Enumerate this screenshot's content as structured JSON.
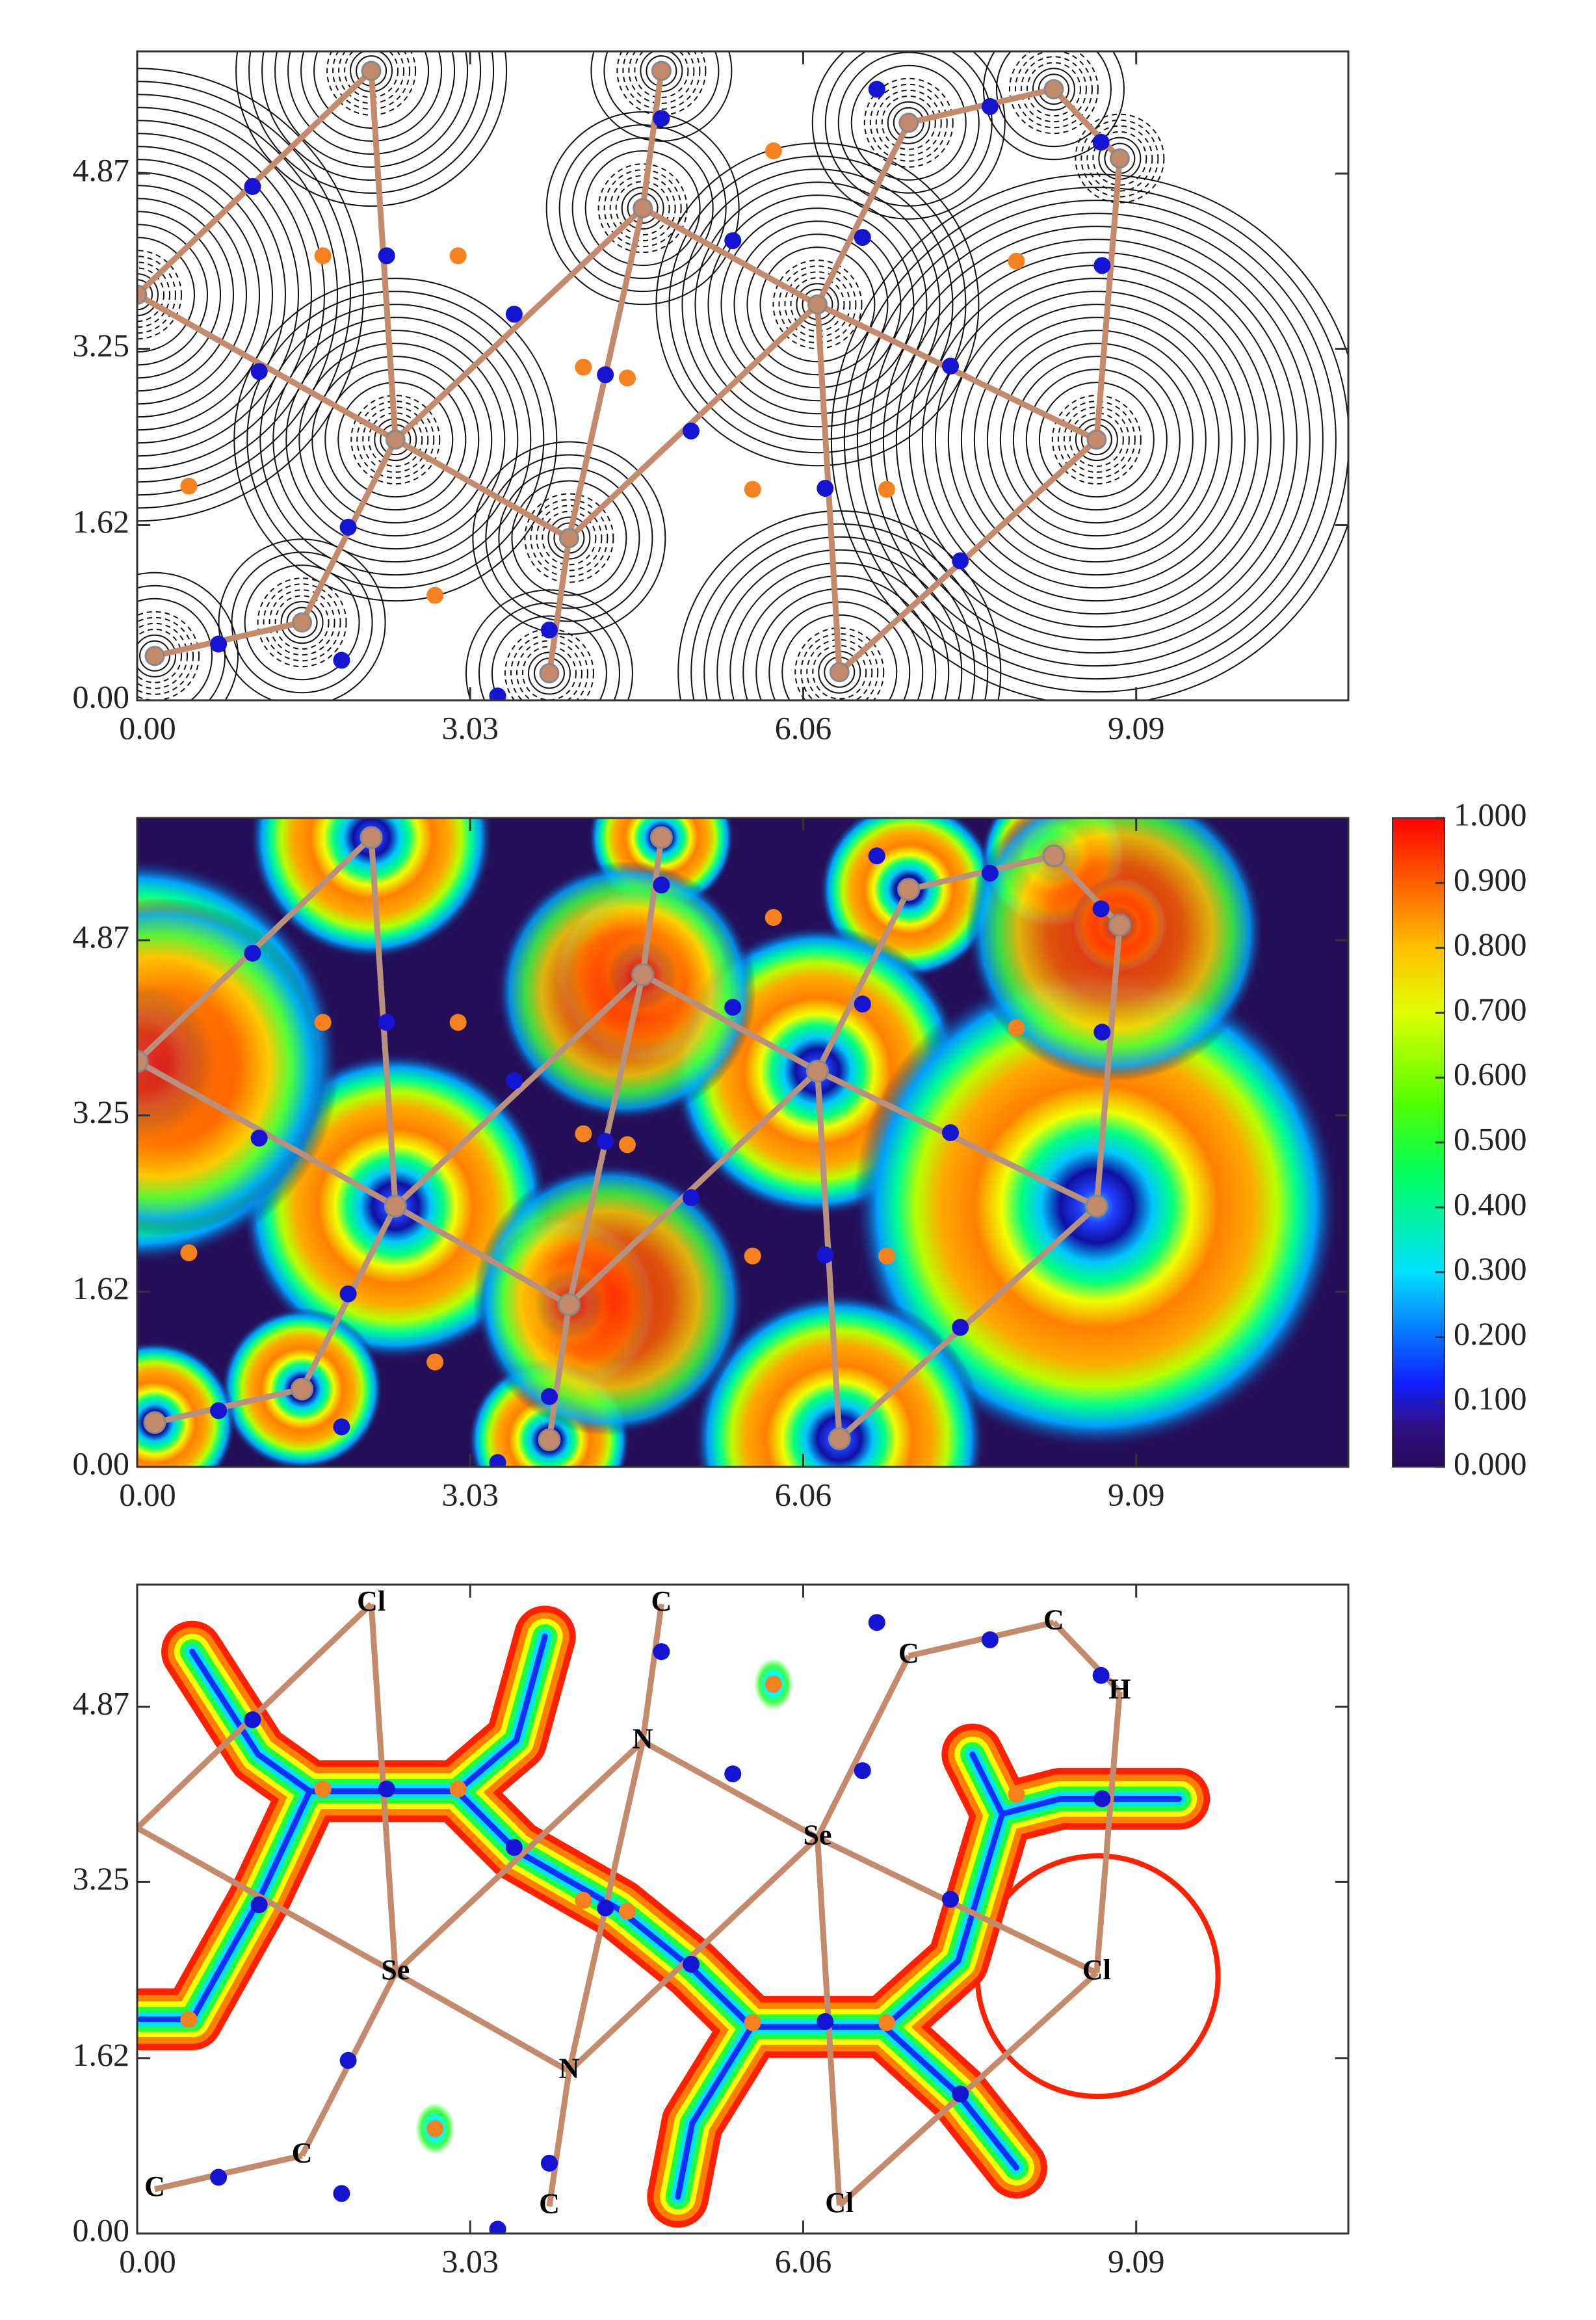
{
  "chart_data": [
    {
      "type": "contour",
      "xlim": [
        0,
        11.02
      ],
      "ylim": [
        0,
        6.0
      ],
      "xticks": [
        {
          "value": 0,
          "label": "0.00"
        },
        3.03,
        6.06,
        9.09
      ],
      "yticks": [
        {
          "value": 0,
          "label": "0.00"
        },
        1.62,
        3.25,
        4.87
      ],
      "atoms": {
        "x": [
          2.13,
          4.77,
          7.02,
          8.34,
          8.94,
          4.6,
          6.19,
          2.35,
          8.73,
          3.93,
          1.5,
          0.16,
          3.75,
          6.39,
          0.0
        ],
        "y": [
          5.82,
          5.82,
          5.34,
          5.65,
          5.01,
          4.55,
          3.66,
          2.41,
          2.41,
          1.5,
          0.72,
          0.41,
          0.25,
          0.26,
          3.75
        ]
      },
      "bonds": [
        [
          0,
          7
        ],
        [
          7,
          9
        ],
        [
          14,
          7
        ],
        [
          7,
          5
        ],
        [
          6,
          5
        ],
        [
          6,
          13
        ],
        [
          6,
          8
        ],
        [
          6,
          2
        ],
        [
          1,
          5
        ],
        [
          2,
          3
        ],
        [
          3,
          4
        ],
        [
          4,
          8
        ],
        [
          9,
          12
        ],
        [
          9,
          6
        ],
        [
          10,
          11
        ],
        [
          10,
          7
        ],
        [
          13,
          8
        ],
        [
          14,
          0
        ],
        [
          5,
          9
        ]
      ],
      "bcp": {
        "color": "#1414d2",
        "x": [
          1.05,
          2.27,
          3.43,
          1.11,
          1.92,
          0.74,
          1.86,
          5.04,
          5.42,
          6.6,
          7.4,
          6.26,
          7.49,
          7.76,
          8.77,
          8.78,
          4.77,
          6.73,
          3.75,
          3.28,
          4.26
        ],
        "y": [
          4.75,
          4.11,
          3.57,
          3.04,
          1.6,
          0.52,
          0.37,
          2.49,
          4.25,
          4.28,
          3.09,
          1.96,
          1.29,
          5.49,
          5.16,
          4.02,
          5.38,
          5.65,
          0.65,
          0.04,
          3.01
        ]
      },
      "rcp": {
        "color": "#f5821f",
        "x": [
          1.69,
          2.92,
          4.06,
          4.46,
          0.47,
          2.71,
          5.6,
          6.82,
          8.0,
          5.79
        ],
        "y": [
          4.11,
          4.11,
          3.08,
          2.98,
          1.98,
          0.97,
          1.95,
          1.95,
          4.06,
          5.08
        ]
      }
    },
    {
      "type": "heatmap",
      "xlim": [
        0,
        11.02
      ],
      "ylim": [
        0,
        6.0
      ],
      "xticks": [
        {
          "value": 0,
          "label": "0.00"
        },
        3.03,
        6.06,
        9.09
      ],
      "yticks": [
        {
          "value": 0,
          "label": "0.00"
        },
        1.62,
        3.25,
        4.87
      ],
      "atoms": {
        "x": [
          2.13,
          4.77,
          7.02,
          8.34,
          8.94,
          4.6,
          6.19,
          2.35,
          8.73,
          3.93,
          1.5,
          0.16,
          3.75,
          6.39,
          0.0
        ],
        "y": [
          5.82,
          5.82,
          5.34,
          5.65,
          5.01,
          4.55,
          3.66,
          2.41,
          2.41,
          1.5,
          0.72,
          0.41,
          0.25,
          0.26,
          3.75
        ]
      },
      "bonds": [
        [
          0,
          7
        ],
        [
          7,
          9
        ],
        [
          14,
          7
        ],
        [
          7,
          5
        ],
        [
          6,
          5
        ],
        [
          6,
          13
        ],
        [
          6,
          8
        ],
        [
          6,
          2
        ],
        [
          1,
          5
        ],
        [
          2,
          3
        ],
        [
          3,
          4
        ],
        [
          4,
          8
        ],
        [
          9,
          12
        ],
        [
          9,
          6
        ],
        [
          10,
          11
        ],
        [
          10,
          7
        ],
        [
          13,
          8
        ],
        [
          14,
          0
        ],
        [
          5,
          9
        ]
      ],
      "bcp": {
        "color": "#1414d2",
        "x": [
          1.05,
          2.27,
          3.43,
          1.11,
          1.92,
          0.74,
          1.86,
          5.04,
          5.42,
          6.6,
          7.4,
          6.26,
          7.49,
          7.76,
          8.77,
          8.78,
          4.77,
          6.73,
          3.75,
          3.28,
          4.26
        ],
        "y": [
          4.75,
          4.11,
          3.57,
          3.04,
          1.6,
          0.52,
          0.37,
          2.49,
          4.25,
          4.28,
          3.09,
          1.96,
          1.29,
          5.49,
          5.16,
          4.02,
          5.38,
          5.65,
          0.65,
          0.04,
          3.01
        ]
      },
      "rcp": {
        "color": "#f5821f",
        "x": [
          1.69,
          2.92,
          4.06,
          4.46,
          0.47,
          2.71,
          5.6,
          6.82,
          8.0,
          5.79
        ],
        "y": [
          4.11,
          4.11,
          3.08,
          2.98,
          1.98,
          0.97,
          1.95,
          1.95,
          4.06,
          5.08
        ]
      },
      "colorbar": {
        "lim": [
          0,
          1
        ],
        "ticks": [
          {
            "value": 0,
            "label": "0.000"
          },
          {
            "value": 0.1,
            "label": "0.100"
          },
          {
            "value": 0.2,
            "label": "0.200"
          },
          {
            "value": 0.3,
            "label": "0.300"
          },
          {
            "value": 0.4,
            "label": "0.400"
          },
          {
            "value": 0.5,
            "label": "0.500"
          },
          {
            "value": 0.6,
            "label": "0.600"
          },
          {
            "value": 0.7,
            "label": "0.700"
          },
          {
            "value": 0.8,
            "label": "0.800"
          },
          {
            "value": 0.9,
            "label": "0.900"
          },
          {
            "value": 1,
            "label": "1.000"
          }
        ]
      }
    },
    {
      "type": "rdg",
      "xlim": [
        0,
        11.02
      ],
      "ylim": [
        0,
        6.0
      ],
      "xticks": [
        {
          "value": 0,
          "label": "0.00"
        },
        3.03,
        6.06,
        9.09
      ],
      "yticks": [
        {
          "value": 0,
          "label": "0.00"
        },
        1.62,
        3.25,
        4.87
      ],
      "atoms": {
        "labels": [
          "Cl",
          "C",
          "C",
          "C",
          "H",
          "N",
          "Se",
          "Se",
          "Cl",
          "N",
          "C",
          "C",
          "C",
          "Cl",
          null
        ],
        "x": [
          2.13,
          4.77,
          7.02,
          8.34,
          8.94,
          4.6,
          6.19,
          2.35,
          8.73,
          3.93,
          1.5,
          0.16,
          3.75,
          6.39,
          0.0
        ],
        "y": [
          5.82,
          5.82,
          5.34,
          5.65,
          5.01,
          4.55,
          3.66,
          2.41,
          2.41,
          1.5,
          0.72,
          0.41,
          0.25,
          0.26,
          3.75
        ]
      },
      "bonds": [
        [
          0,
          7
        ],
        [
          7,
          9
        ],
        [
          14,
          7
        ],
        [
          7,
          5
        ],
        [
          6,
          5
        ],
        [
          6,
          13
        ],
        [
          6,
          8
        ],
        [
          6,
          2
        ],
        [
          1,
          5
        ],
        [
          2,
          3
        ],
        [
          3,
          4
        ],
        [
          4,
          8
        ],
        [
          9,
          12
        ],
        [
          9,
          6
        ],
        [
          10,
          11
        ],
        [
          10,
          7
        ],
        [
          13,
          8
        ],
        [
          14,
          0
        ],
        [
          5,
          9
        ]
      ],
      "bcp": {
        "color": "#1414d2",
        "x": [
          1.05,
          2.27,
          3.43,
          1.11,
          1.92,
          0.74,
          1.86,
          5.04,
          5.42,
          6.6,
          7.4,
          6.26,
          7.49,
          7.76,
          8.77,
          8.78,
          4.77,
          6.73,
          3.75,
          3.28,
          4.26
        ],
        "y": [
          4.75,
          4.11,
          3.57,
          3.04,
          1.6,
          0.52,
          0.37,
          2.49,
          4.25,
          4.28,
          3.09,
          1.96,
          1.29,
          5.49,
          5.16,
          4.02,
          5.38,
          5.65,
          0.65,
          0.04,
          3.01
        ]
      },
      "rcp": {
        "color": "#f5821f",
        "x": [
          1.69,
          2.92,
          4.06,
          4.46,
          0.47,
          2.71,
          5.6,
          6.82,
          8.0,
          5.79
        ],
        "y": [
          4.11,
          4.11,
          3.08,
          2.98,
          1.98,
          0.97,
          1.95,
          1.95,
          4.06,
          5.08
        ]
      }
    }
  ]
}
